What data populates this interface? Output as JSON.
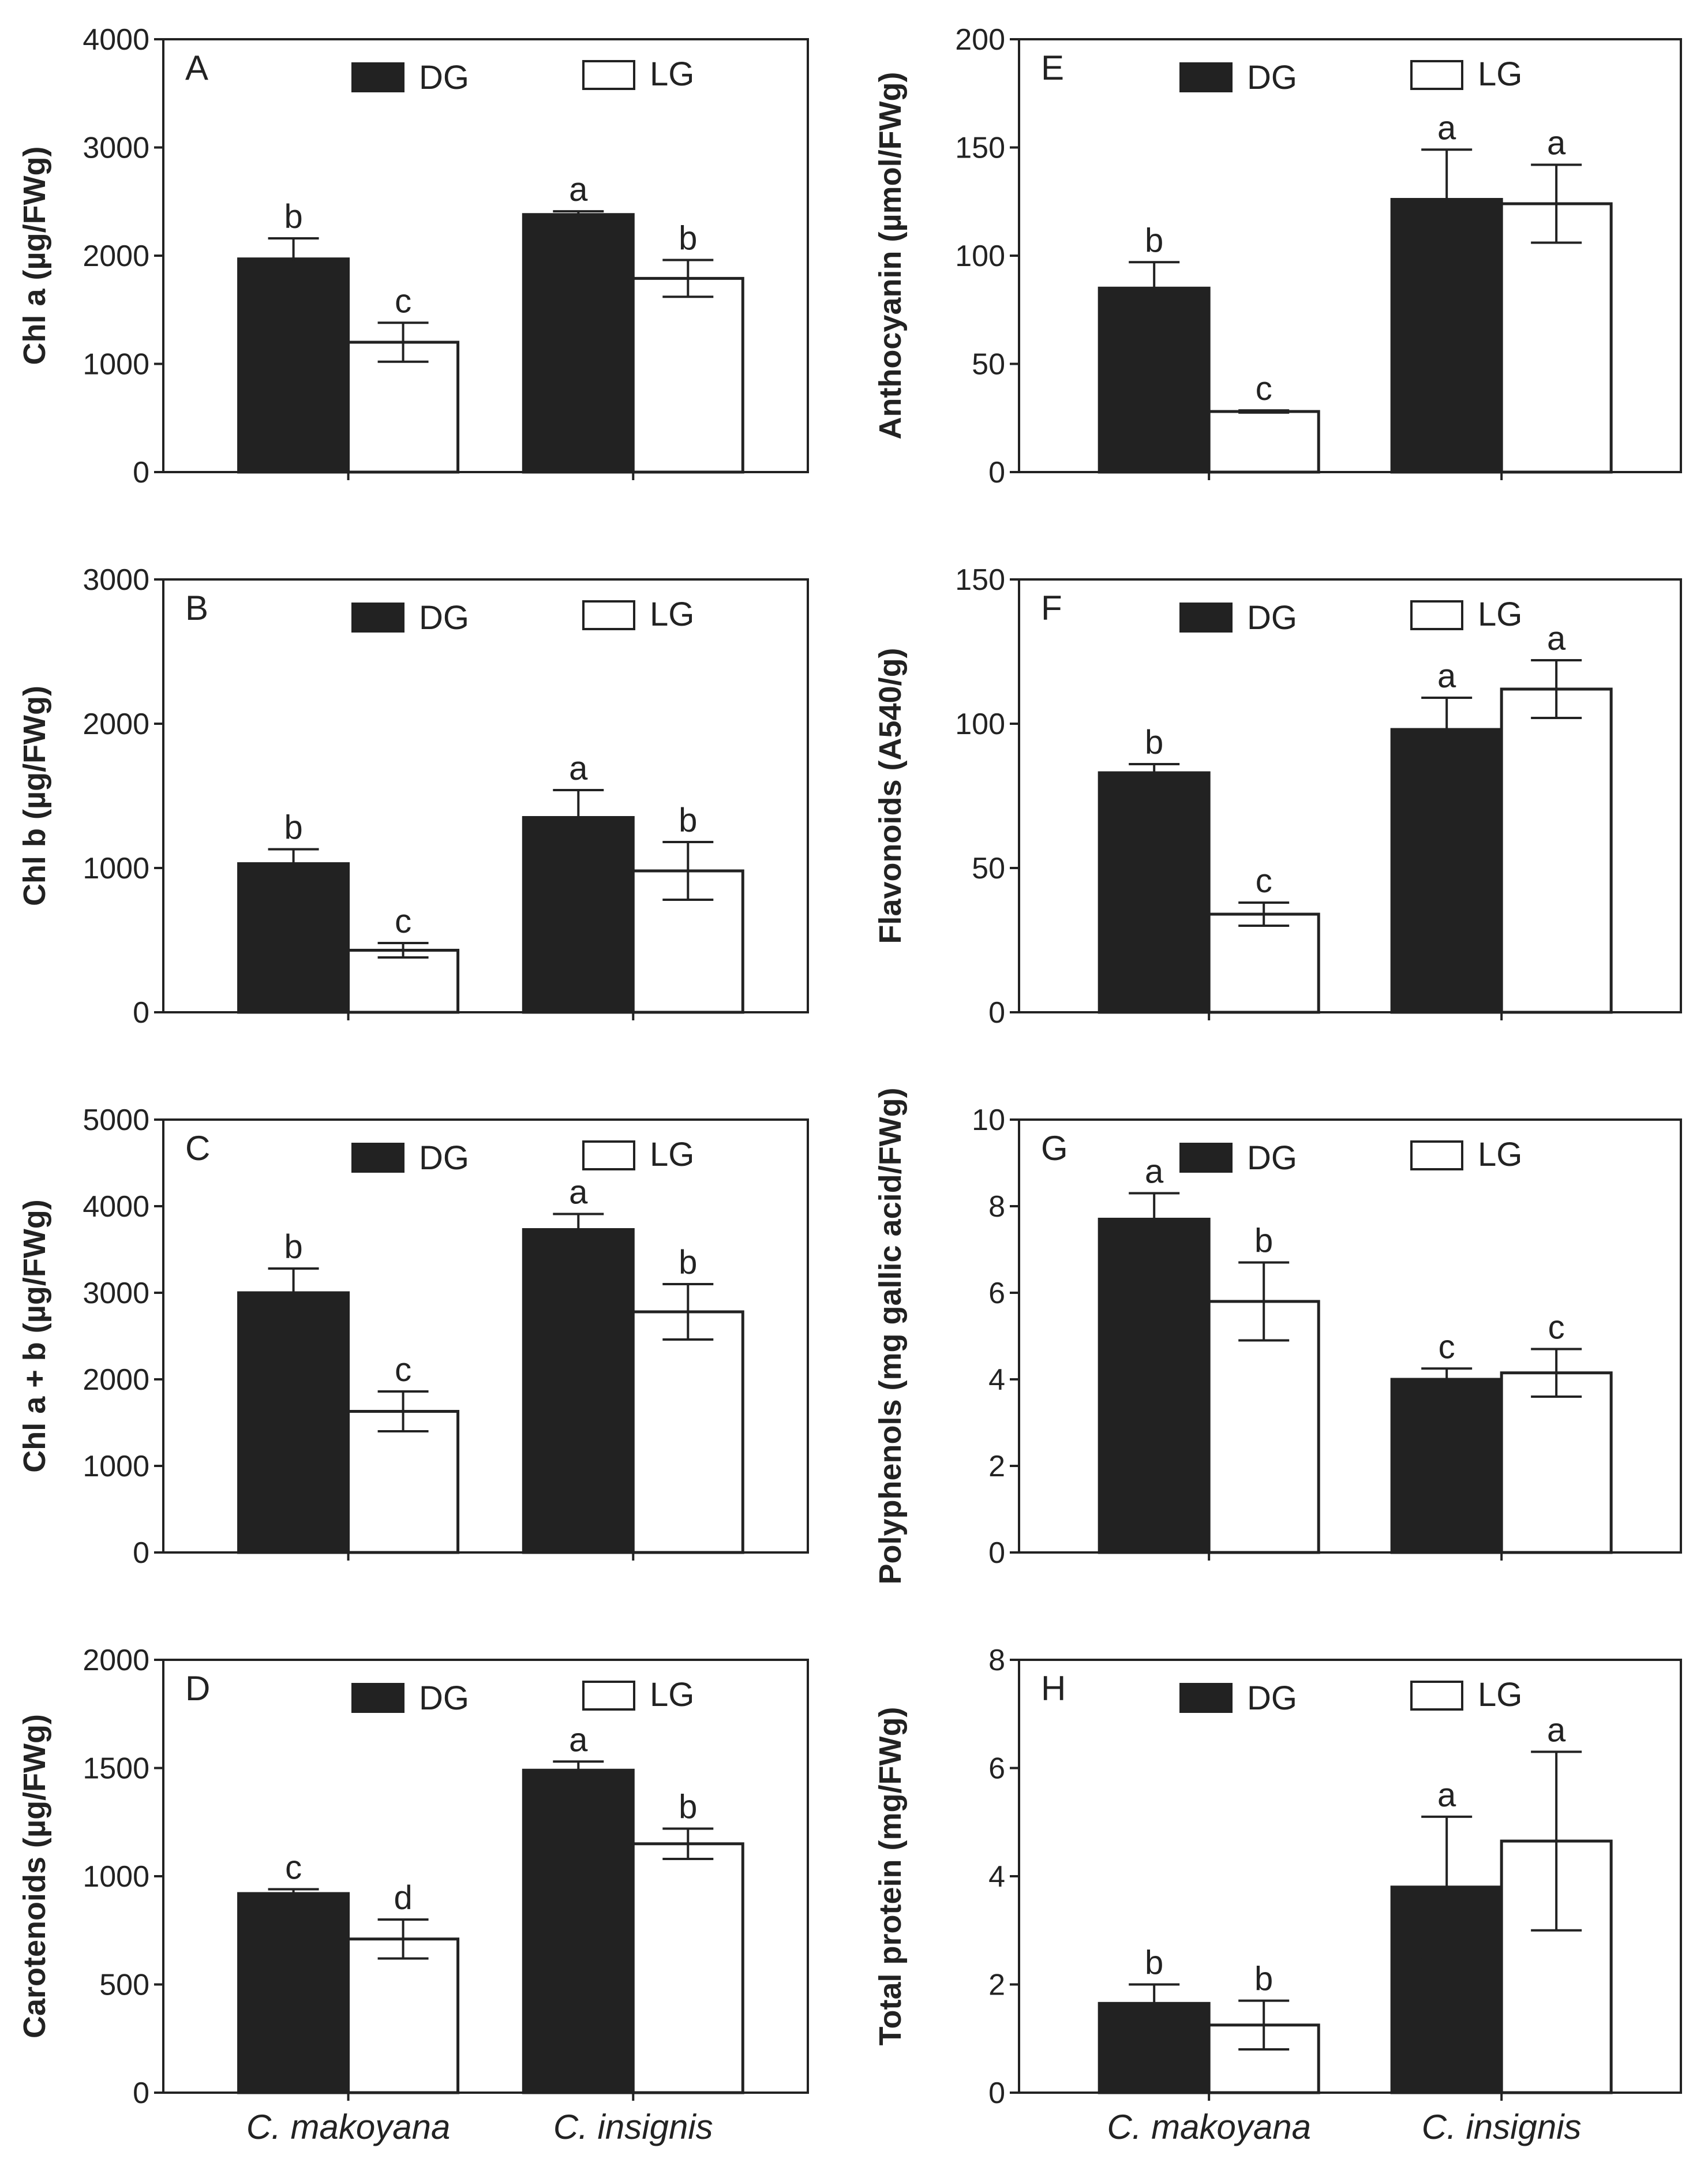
{
  "colors": {
    "dg": "#222222",
    "lg": "#ffffff",
    "axis": "#222222"
  },
  "categories": [
    "C. makoyana",
    "C. insignis"
  ],
  "legend": {
    "dg": "DG",
    "lg": "LG"
  },
  "chart_data": [
    {
      "type": "bar",
      "panel": "A",
      "ylabel": "Chl a (µg/FWg)",
      "ylim": [
        0,
        4000
      ],
      "yticks": [
        0,
        1000,
        2000,
        3000,
        4000
      ],
      "categories": [
        "C. makoyana",
        "C. insignis"
      ],
      "series": [
        {
          "name": "DG",
          "values": [
            1970,
            2380
          ],
          "errors": [
            190,
            30
          ],
          "letters": [
            "b",
            "a"
          ]
        },
        {
          "name": "LG",
          "values": [
            1200,
            1790
          ],
          "errors": [
            180,
            170
          ],
          "letters": [
            "c",
            "b"
          ]
        }
      ]
    },
    {
      "type": "bar",
      "panel": "B",
      "ylabel": "Chl b (µg/FWg)",
      "ylim": [
        0,
        3000
      ],
      "yticks": [
        0,
        1000,
        2000,
        3000
      ],
      "categories": [
        "C. makoyana",
        "C. insignis"
      ],
      "series": [
        {
          "name": "DG",
          "values": [
            1030,
            1350
          ],
          "errors": [
            100,
            190
          ],
          "letters": [
            "b",
            "a"
          ]
        },
        {
          "name": "LG",
          "values": [
            430,
            980
          ],
          "errors": [
            50,
            200
          ],
          "letters": [
            "c",
            "b"
          ]
        }
      ]
    },
    {
      "type": "bar",
      "panel": "C",
      "ylabel": "Chl a + b (µg/FWg)",
      "ylim": [
        0,
        5000
      ],
      "yticks": [
        0,
        1000,
        2000,
        3000,
        4000,
        5000
      ],
      "categories": [
        "C. makoyana",
        "C. insignis"
      ],
      "series": [
        {
          "name": "DG",
          "values": [
            3000,
            3730
          ],
          "errors": [
            280,
            180
          ],
          "letters": [
            "b",
            "a"
          ]
        },
        {
          "name": "LG",
          "values": [
            1630,
            2780
          ],
          "errors": [
            230,
            320
          ],
          "letters": [
            "c",
            "b"
          ]
        }
      ]
    },
    {
      "type": "bar",
      "panel": "D",
      "ylabel": "Carotenoids (µg/FWg)",
      "ylim": [
        0,
        2000
      ],
      "yticks": [
        0,
        500,
        1000,
        1500,
        2000
      ],
      "categories": [
        "C. makoyana",
        "C. insignis"
      ],
      "series": [
        {
          "name": "DG",
          "values": [
            920,
            1490
          ],
          "errors": [
            20,
            40
          ],
          "letters": [
            "c",
            "a"
          ]
        },
        {
          "name": "LG",
          "values": [
            710,
            1150
          ],
          "errors": [
            90,
            70
          ],
          "letters": [
            "d",
            "b"
          ]
        }
      ]
    },
    {
      "type": "bar",
      "panel": "E",
      "ylabel": "Anthocyanin (µmol/FWg)",
      "ylim": [
        0,
        200
      ],
      "yticks": [
        0,
        50,
        100,
        150,
        200
      ],
      "categories": [
        "C. makoyana",
        "C. insignis"
      ],
      "series": [
        {
          "name": "DG",
          "values": [
            85,
            126
          ],
          "errors": [
            12,
            23
          ],
          "letters": [
            "b",
            "a"
          ]
        },
        {
          "name": "LG",
          "values": [
            28,
            124
          ],
          "errors": [
            0.5,
            18
          ],
          "letters": [
            "c",
            "a"
          ]
        }
      ]
    },
    {
      "type": "bar",
      "panel": "F",
      "ylabel": "Flavonoids (A540/g)",
      "ylim": [
        0,
        150
      ],
      "yticks": [
        0,
        50,
        100,
        150
      ],
      "categories": [
        "C. makoyana",
        "C. insignis"
      ],
      "series": [
        {
          "name": "DG",
          "values": [
            83,
            98
          ],
          "errors": [
            3,
            11
          ],
          "letters": [
            "b",
            "a"
          ]
        },
        {
          "name": "LG",
          "values": [
            34,
            112
          ],
          "errors": [
            4,
            10
          ],
          "letters": [
            "c",
            "a"
          ]
        }
      ]
    },
    {
      "type": "bar",
      "panel": "G",
      "ylabel": "Polyphenols (mg gallic acid/FWg)",
      "ylim": [
        0,
        10
      ],
      "yticks": [
        0,
        2,
        4,
        6,
        8,
        10
      ],
      "categories": [
        "C. makoyana",
        "C. insignis"
      ],
      "series": [
        {
          "name": "DG",
          "values": [
            7.7,
            4.0
          ],
          "errors": [
            0.6,
            0.25
          ],
          "letters": [
            "a",
            "c"
          ]
        },
        {
          "name": "LG",
          "values": [
            5.8,
            4.15
          ],
          "errors": [
            0.9,
            0.55
          ],
          "letters": [
            "b",
            "c"
          ]
        }
      ]
    },
    {
      "type": "bar",
      "panel": "H",
      "ylabel": "Total protein (mg/FWg)",
      "ylim": [
        0,
        8
      ],
      "yticks": [
        0,
        2,
        4,
        6,
        8
      ],
      "categories": [
        "C. makoyana",
        "C. insignis"
      ],
      "series": [
        {
          "name": "DG",
          "values": [
            1.65,
            3.8
          ],
          "errors": [
            0.35,
            1.3
          ],
          "letters": [
            "b",
            "a"
          ]
        },
        {
          "name": "LG",
          "values": [
            1.25,
            4.65
          ],
          "errors": [
            0.45,
            1.65
          ],
          "letters": [
            "b",
            "a"
          ]
        }
      ]
    }
  ]
}
